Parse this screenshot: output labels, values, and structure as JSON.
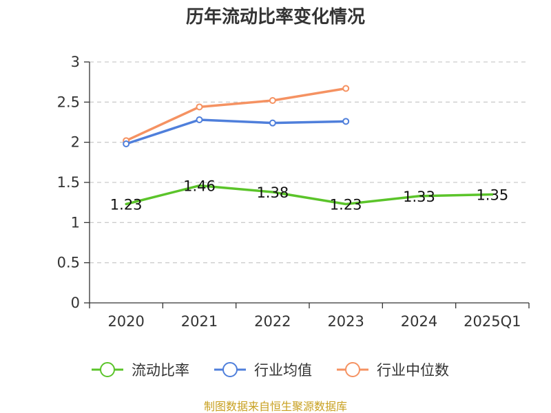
{
  "chart_data": {
    "type": "line",
    "title": "历年流动比率变化情况",
    "xlabel": "",
    "ylabel": "",
    "categories": [
      "2020",
      "2021",
      "2022",
      "2023",
      "2024",
      "2025Q1"
    ],
    "ylim": [
      0,
      3
    ],
    "yticks": [
      "0",
      "0.5",
      "1",
      "1.5",
      "2",
      "2.5",
      "3"
    ],
    "grid": true,
    "legend_position": "bottom",
    "series": [
      {
        "name": "流动比率",
        "color": "#5bc42a",
        "values": [
          1.23,
          1.46,
          1.38,
          1.23,
          1.33,
          1.35
        ],
        "labels": [
          "1.23",
          "1.46",
          "1.38",
          "1.23",
          "1.33",
          "1.35"
        ]
      },
      {
        "name": "行业均值",
        "color": "#4f7fdb",
        "values": [
          1.98,
          2.28,
          2.24,
          2.26,
          null,
          null
        ]
      },
      {
        "name": "行业中位数",
        "color": "#f59262",
        "values": [
          2.02,
          2.44,
          2.52,
          2.67,
          null,
          null
        ]
      }
    ]
  },
  "source_text": "制图数据来自恒生聚源数据库"
}
